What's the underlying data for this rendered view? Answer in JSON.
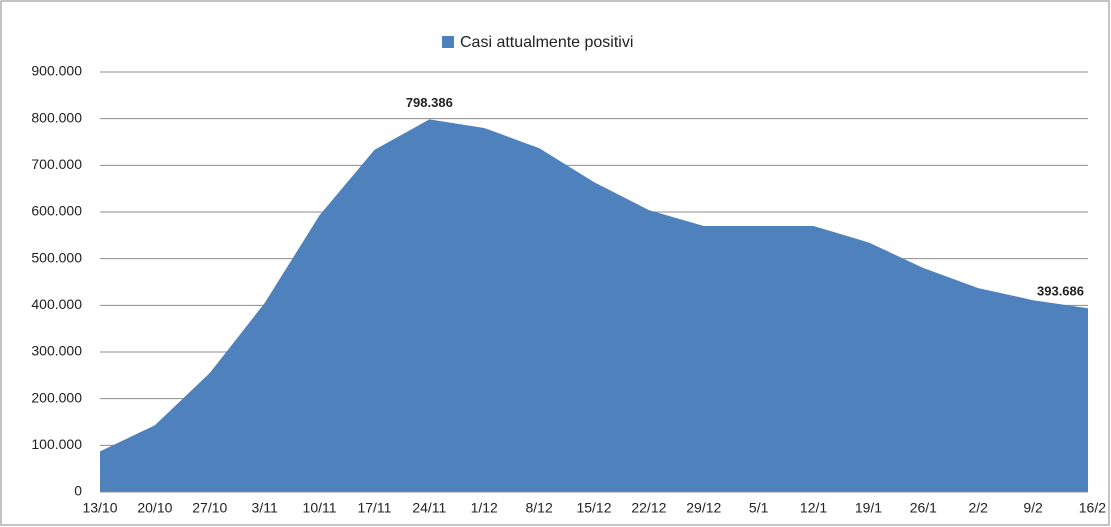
{
  "chart_data": {
    "type": "area",
    "categories": [
      "13/10",
      "20/10",
      "27/10",
      "3/11",
      "10/11",
      "17/11",
      "24/11",
      "1/12",
      "8/12",
      "15/12",
      "22/12",
      "29/12",
      "5/1",
      "12/1",
      "19/1",
      "26/1",
      "2/2",
      "9/2",
      "16/2"
    ],
    "series": [
      {
        "name": "Casi attualmente positivi",
        "color": "#4f81bd",
        "values": [
          87000,
          143000,
          255000,
          405000,
          593000,
          733000,
          798386,
          780000,
          737000,
          664000,
          604000,
          570000,
          570000,
          570000,
          535000,
          480000,
          437000,
          411000,
          393686
        ],
        "value_labels": [
          null,
          null,
          null,
          null,
          null,
          null,
          "798.386",
          null,
          null,
          null,
          null,
          null,
          null,
          null,
          null,
          null,
          null,
          null,
          "393.686"
        ]
      }
    ],
    "ylim": [
      0,
      900000
    ],
    "yticks": [
      0,
      {
        "value": 100000,
        "label": "100.000"
      },
      {
        "value": 200000,
        "label": "200.000"
      },
      {
        "value": 300000,
        "label": "300.000"
      },
      {
        "value": 400000,
        "label": "400.000"
      },
      {
        "value": 500000,
        "label": "500.000"
      },
      {
        "value": 600000,
        "label": "600.000"
      },
      {
        "value": 700000,
        "label": "700.000"
      },
      {
        "value": 800000,
        "label": "800.000"
      },
      {
        "value": 900000,
        "label": "900.000"
      }
    ],
    "grid": true,
    "legend": "top"
  }
}
